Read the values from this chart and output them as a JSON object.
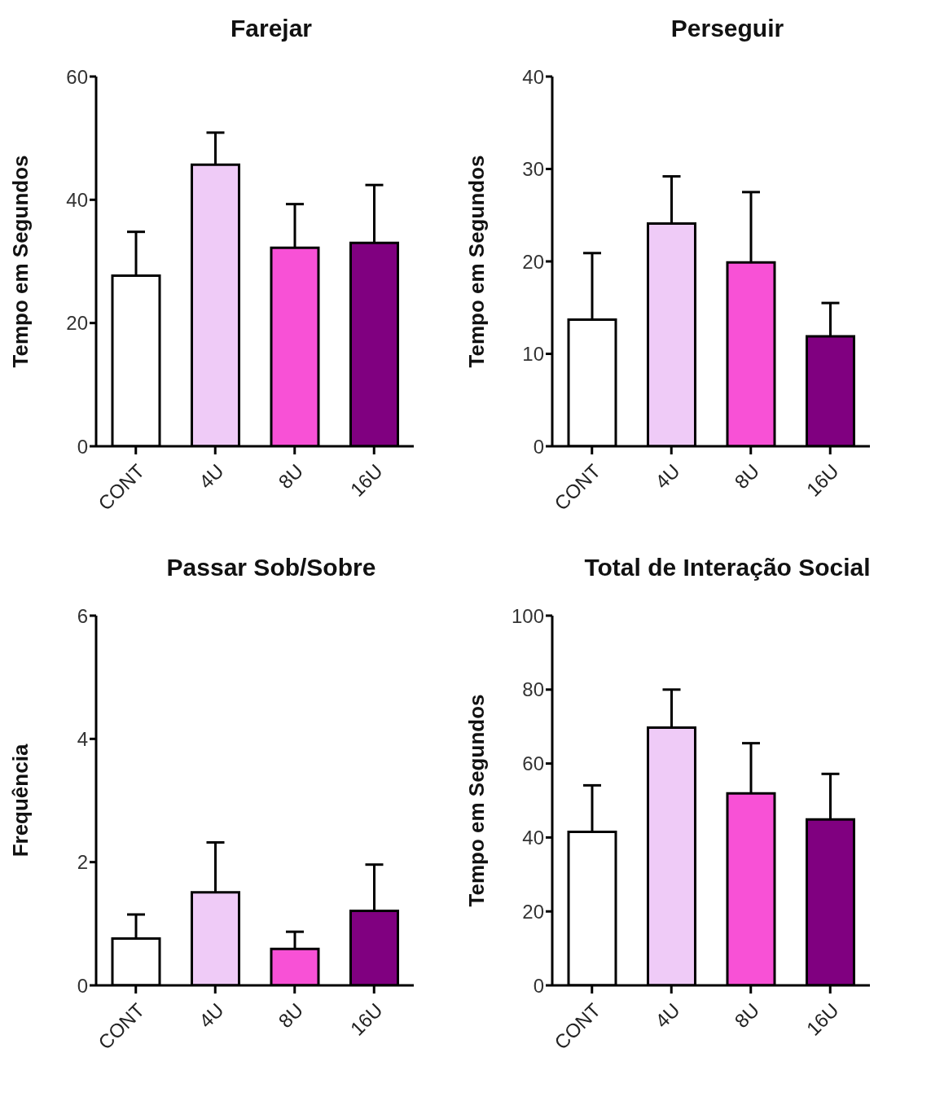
{
  "chart_data": [
    {
      "type": "bar",
      "title": "Farejar",
      "ylabel": "Tempo em Segundos",
      "categories": [
        "CONT",
        "4U",
        "8U",
        "16U"
      ],
      "values": [
        27.7,
        45.7,
        32.2,
        33.0
      ],
      "errors": [
        [
          27.7,
          34.8
        ],
        [
          45.7,
          50.9
        ],
        [
          32.2,
          39.3
        ],
        [
          33.0,
          42.4
        ]
      ],
      "colors": [
        "#ffffff",
        "#efcbf7",
        "#f851d6",
        "#800080"
      ],
      "ylim": [
        0,
        60
      ],
      "yticks": [
        0,
        20,
        40,
        60
      ],
      "grid": false,
      "legend": false
    },
    {
      "type": "bar",
      "title": "Perseguir",
      "ylabel": "Tempo em Segundos",
      "categories": [
        "CONT",
        "4U",
        "8U",
        "16U"
      ],
      "values": [
        13.7,
        24.1,
        19.9,
        11.9
      ],
      "errors": [
        [
          13.7,
          20.9
        ],
        [
          24.1,
          29.2
        ],
        [
          19.9,
          27.5
        ],
        [
          11.9,
          15.5
        ]
      ],
      "colors": [
        "#ffffff",
        "#efcbf7",
        "#f851d6",
        "#800080"
      ],
      "ylim": [
        0,
        40
      ],
      "yticks": [
        0,
        10,
        20,
        30,
        40
      ],
      "grid": false,
      "legend": false
    },
    {
      "type": "bar",
      "title": "Passar Sob/Sobre",
      "ylabel": "Frequência",
      "categories": [
        "CONT",
        "4U",
        "8U",
        "16U"
      ],
      "values": [
        0.76,
        1.51,
        0.59,
        1.21
      ],
      "errors": [
        [
          0.76,
          1.15
        ],
        [
          1.51,
          2.32
        ],
        [
          0.59,
          0.87
        ],
        [
          1.21,
          1.96
        ]
      ],
      "colors": [
        "#ffffff",
        "#efcbf7",
        "#f851d6",
        "#800080"
      ],
      "ylim": [
        0,
        6
      ],
      "yticks": [
        0,
        2,
        4,
        6
      ],
      "grid": false,
      "legend": false
    },
    {
      "type": "bar",
      "title": "Total de Interação Social",
      "ylabel": "Tempo em Segundos",
      "categories": [
        "CONT",
        "4U",
        "8U",
        "16U"
      ],
      "values": [
        41.5,
        69.7,
        51.9,
        44.9
      ],
      "errors": [
        [
          41.5,
          54.1
        ],
        [
          69.7,
          80
        ],
        [
          51.9,
          65.5
        ],
        [
          44.9,
          57.2
        ]
      ],
      "colors": [
        "#ffffff",
        "#efcbf7",
        "#f851d6",
        "#800080"
      ],
      "ylim": [
        0,
        100
      ],
      "yticks": [
        0,
        20,
        40,
        60,
        80,
        100
      ],
      "grid": false,
      "legend": false
    }
  ]
}
